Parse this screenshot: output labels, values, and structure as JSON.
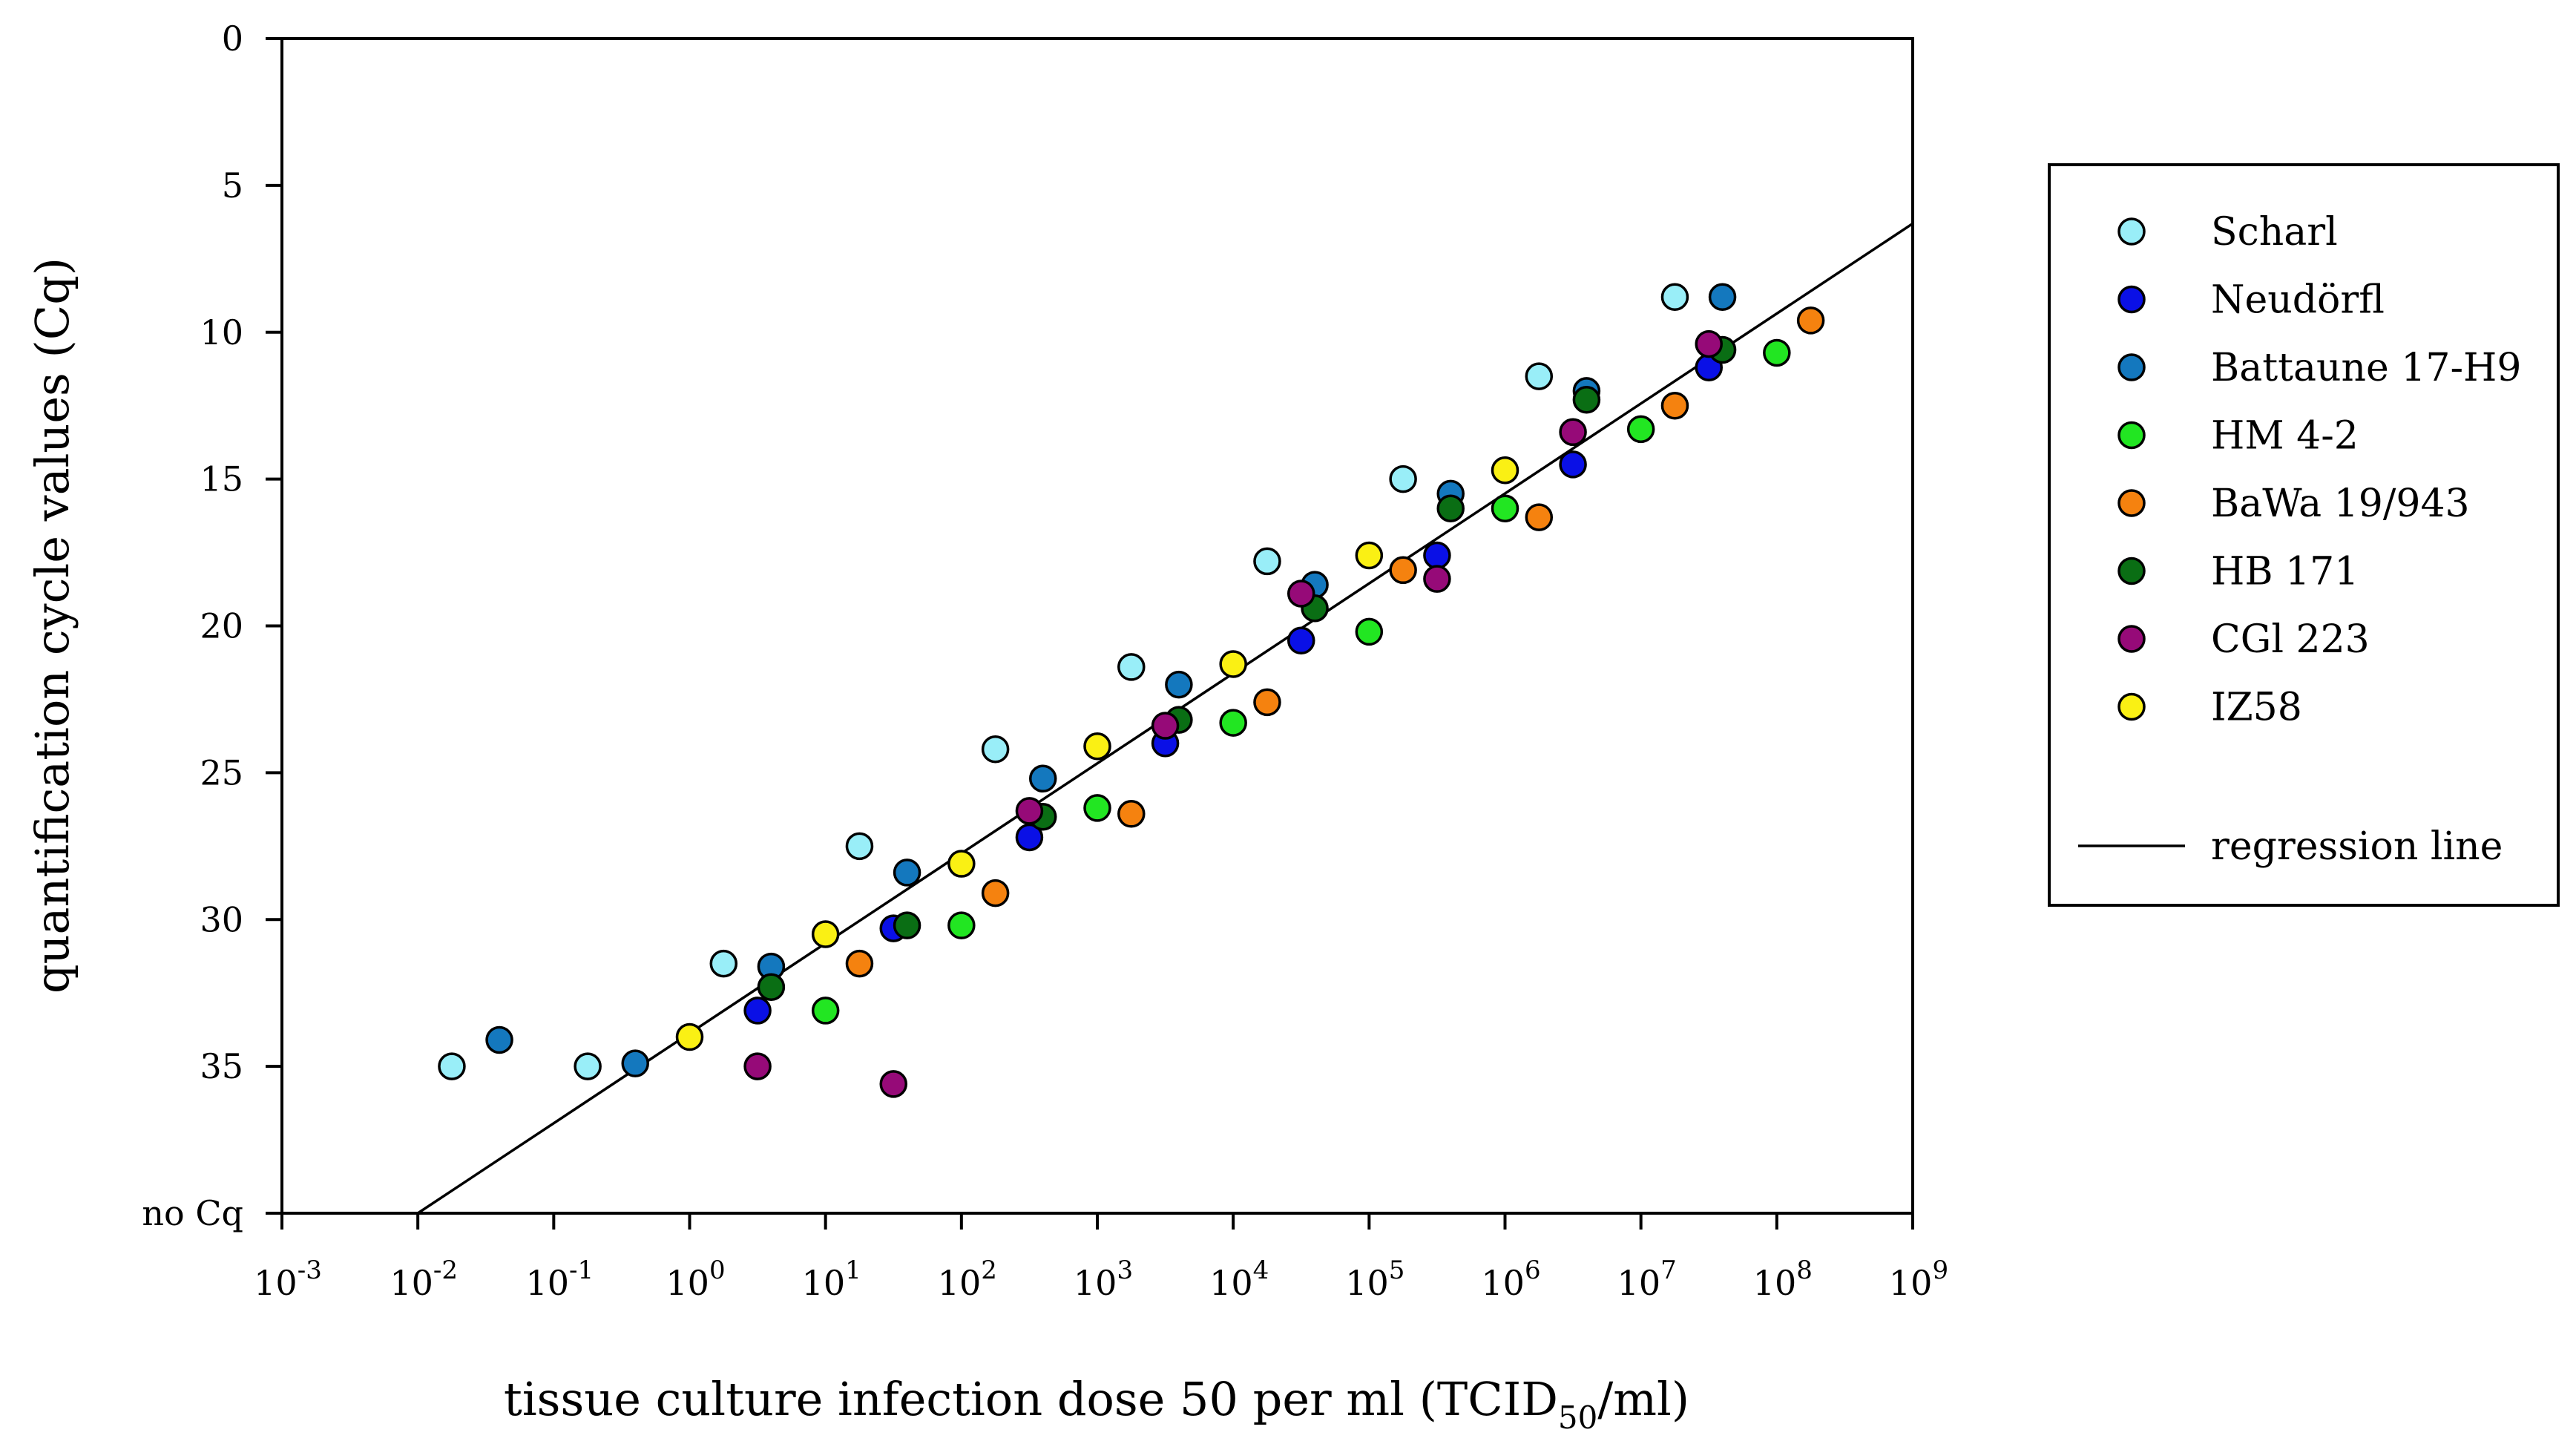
{
  "chart_data": {
    "type": "scatter",
    "title": "",
    "xlabel": "tissue culture infection dose 50 per ml (TCID",
    "xlabel_sub": "50",
    "xlabel_end": "/ml)",
    "ylabel": "quantification cycle values (Cq)",
    "x_scale": "log10",
    "x_log_range": [
      -3,
      9
    ],
    "x_ticks": [
      {
        "base": "10",
        "exp": "-3"
      },
      {
        "base": "10",
        "exp": "-2"
      },
      {
        "base": "10",
        "exp": "-1"
      },
      {
        "base": "10",
        "exp": "0"
      },
      {
        "base": "10",
        "exp": "1"
      },
      {
        "base": "10",
        "exp": "2"
      },
      {
        "base": "10",
        "exp": "3"
      },
      {
        "base": "10",
        "exp": "4"
      },
      {
        "base": "10",
        "exp": "5"
      },
      {
        "base": "10",
        "exp": "6"
      },
      {
        "base": "10",
        "exp": "7"
      },
      {
        "base": "10",
        "exp": "8"
      },
      {
        "base": "10",
        "exp": "9"
      }
    ],
    "ylim": [
      0,
      40
    ],
    "y_inverted": true,
    "y_ticks": [
      {
        "value": 0,
        "label": "0"
      },
      {
        "value": 5,
        "label": "5"
      },
      {
        "value": 10,
        "label": "10"
      },
      {
        "value": 15,
        "label": "15"
      },
      {
        "value": 20,
        "label": "20"
      },
      {
        "value": 25,
        "label": "25"
      },
      {
        "value": 30,
        "label": "30"
      },
      {
        "value": 35,
        "label": "35"
      },
      {
        "value": 40,
        "label": "no Cq"
      }
    ],
    "legend_position": "right",
    "series": [
      {
        "name": "Scharl",
        "color": "#99EEF8",
        "points": [
          [
            -1.75,
            35.0
          ],
          [
            -0.75,
            35.0
          ],
          [
            0.25,
            31.5
          ],
          [
            1.25,
            27.5
          ],
          [
            2.25,
            24.2
          ],
          [
            3.25,
            21.4
          ],
          [
            4.25,
            17.8
          ],
          [
            5.25,
            15.0
          ],
          [
            6.25,
            11.5
          ],
          [
            7.25,
            8.8
          ]
        ]
      },
      {
        "name": "Neudörfl",
        "color": "#0A10E6",
        "points": [
          [
            0.5,
            33.1
          ],
          [
            1.5,
            30.3
          ],
          [
            2.5,
            27.2
          ],
          [
            3.5,
            24.0
          ],
          [
            4.5,
            20.5
          ],
          [
            5.5,
            17.6
          ],
          [
            6.5,
            14.5
          ],
          [
            7.5,
            11.2
          ]
        ]
      },
      {
        "name": "Battaune 17-H9",
        "color": "#1478BE",
        "points": [
          [
            -1.4,
            34.1
          ],
          [
            -0.4,
            34.9
          ],
          [
            0.6,
            31.6
          ],
          [
            1.6,
            28.4
          ],
          [
            2.6,
            25.2
          ],
          [
            3.6,
            22.0
          ],
          [
            4.6,
            18.6
          ],
          [
            5.6,
            15.5
          ],
          [
            6.6,
            12.0
          ],
          [
            7.6,
            8.8
          ]
        ]
      },
      {
        "name": "HM 4-2",
        "color": "#22E622",
        "points": [
          [
            1.0,
            33.1
          ],
          [
            2.0,
            30.2
          ],
          [
            3.0,
            26.2
          ],
          [
            4.0,
            23.3
          ],
          [
            5.0,
            20.2
          ],
          [
            6.0,
            16.0
          ],
          [
            7.0,
            13.3
          ],
          [
            8.0,
            10.7
          ]
        ]
      },
      {
        "name": "BaWa 19/943",
        "color": "#F5820F",
        "points": [
          [
            1.25,
            31.5
          ],
          [
            2.25,
            29.1
          ],
          [
            3.25,
            26.4
          ],
          [
            4.25,
            22.6
          ],
          [
            5.25,
            18.1
          ],
          [
            6.25,
            16.3
          ],
          [
            7.25,
            12.5
          ],
          [
            8.25,
            9.6
          ]
        ]
      },
      {
        "name": "HB 171",
        "color": "#0A6E14",
        "points": [
          [
            0.6,
            32.3
          ],
          [
            1.6,
            30.2
          ],
          [
            2.6,
            26.5
          ],
          [
            3.6,
            23.2
          ],
          [
            4.6,
            19.4
          ],
          [
            5.6,
            16.0
          ],
          [
            6.6,
            12.3
          ],
          [
            7.6,
            10.6
          ]
        ]
      },
      {
        "name": "CGl 223",
        "color": "#960A78",
        "points": [
          [
            0.5,
            35.0
          ],
          [
            1.5,
            35.6
          ],
          [
            2.5,
            26.3
          ],
          [
            3.5,
            23.4
          ],
          [
            4.5,
            18.9
          ],
          [
            5.5,
            18.4
          ],
          [
            6.5,
            13.4
          ],
          [
            7.5,
            10.4
          ]
        ]
      },
      {
        "name": "IZ58",
        "color": "#FAF014",
        "points": [
          [
            0.0,
            34.0
          ],
          [
            1.0,
            30.5
          ],
          [
            2.0,
            28.1
          ],
          [
            3.0,
            24.1
          ],
          [
            4.0,
            21.3
          ],
          [
            5.0,
            17.6
          ],
          [
            6.0,
            14.7
          ]
        ]
      }
    ],
    "regression": {
      "name": "regression line",
      "x1_log": -2.0,
      "y1": 40.0,
      "x2_log": 9.0,
      "y2": 6.3
    }
  }
}
